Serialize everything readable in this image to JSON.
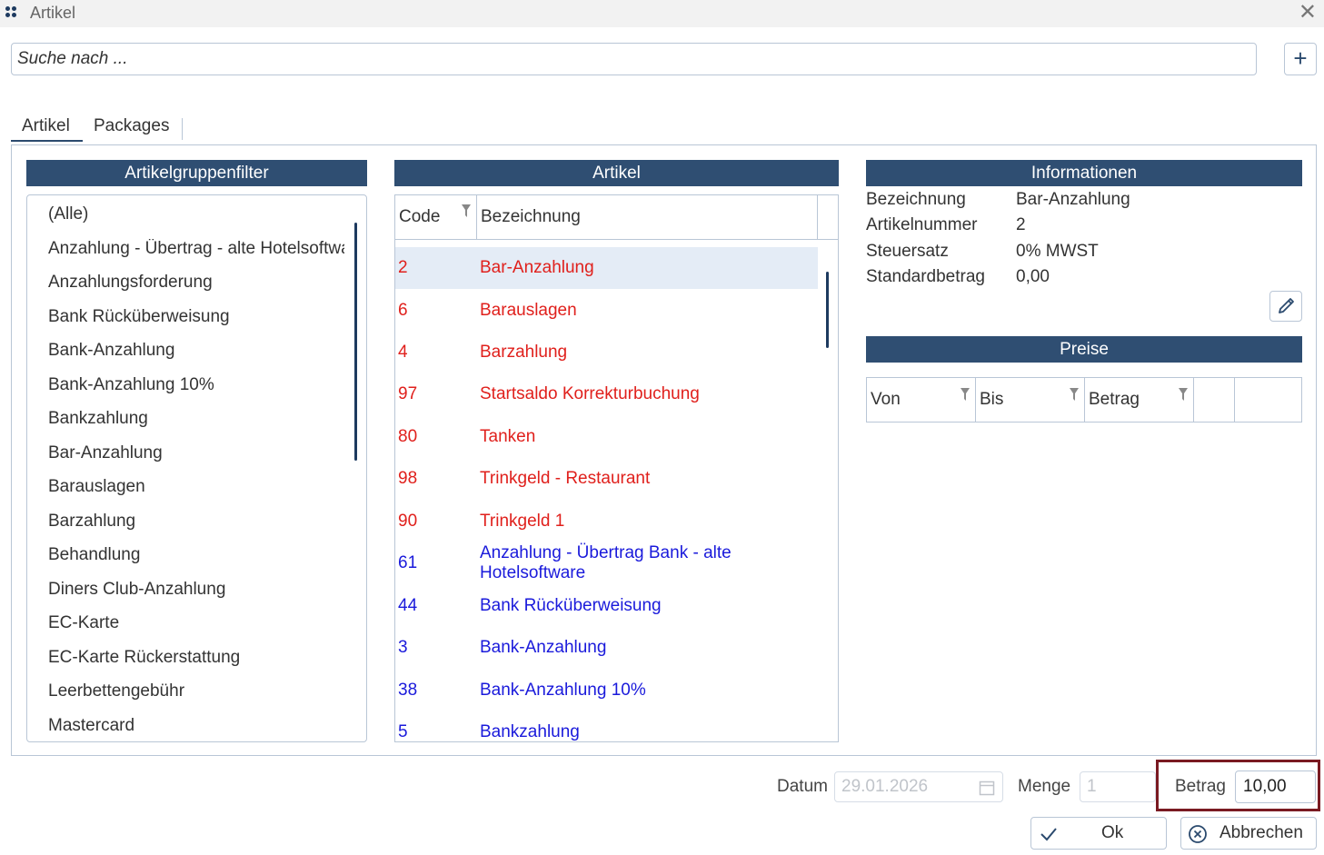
{
  "window": {
    "title": "Artikel"
  },
  "search": {
    "placeholder": "Suche nach ..."
  },
  "tabs": [
    {
      "label": "Artikel"
    },
    {
      "label": "Packages"
    }
  ],
  "group_filter": {
    "header": "Artikelgruppenfilter",
    "items": [
      "(Alle)",
      "Anzahlung - Übertrag - alte Hotelsoftware",
      "Anzahlungsforderung",
      "Bank Rücküberweisung",
      "Bank-Anzahlung",
      "Bank-Anzahlung 10%",
      "Bankzahlung",
      "Bar-Anzahlung",
      "Barauslagen",
      "Barzahlung",
      "Behandlung",
      "Diners Club-Anzahlung",
      "EC-Karte",
      "EC-Karte Rückerstattung",
      "Leerbettengebühr",
      "Mastercard"
    ]
  },
  "articles": {
    "header": "Artikel",
    "columns": {
      "code": "Code",
      "name": "Bezeichnung"
    },
    "rows": [
      {
        "code": "2",
        "name": "Bar-Anzahlung",
        "color": "#e0201c",
        "selected": true
      },
      {
        "code": "6",
        "name": "Barauslagen",
        "color": "#e0201c"
      },
      {
        "code": "4",
        "name": "Barzahlung",
        "color": "#e0201c"
      },
      {
        "code": "97",
        "name": "Startsaldo Korrekturbuchung",
        "color": "#e0201c"
      },
      {
        "code": "80",
        "name": "Tanken",
        "color": "#e0201c"
      },
      {
        "code": "98",
        "name": "Trinkgeld - Restaurant",
        "color": "#e0201c"
      },
      {
        "code": "90",
        "name": "Trinkgeld 1",
        "color": "#e0201c"
      },
      {
        "code": "61",
        "name": "Anzahlung - Übertrag Bank - alte Hotelsoftware",
        "color": "#1a1adb"
      },
      {
        "code": "44",
        "name": "Bank Rücküberweisung",
        "color": "#1a1adb"
      },
      {
        "code": "3",
        "name": "Bank-Anzahlung",
        "color": "#1a1adb"
      },
      {
        "code": "38",
        "name": "Bank-Anzahlung 10%",
        "color": "#1a1adb"
      },
      {
        "code": "5",
        "name": "Bankzahlung",
        "color": "#1a1adb"
      }
    ]
  },
  "info": {
    "header": "Informationen",
    "fields": [
      {
        "label": "Bezeichnung",
        "value": "Bar-Anzahlung"
      },
      {
        "label": "Artikelnummer",
        "value": "2"
      },
      {
        "label": "Steuersatz",
        "value": "0% MWST"
      },
      {
        "label": "Standardbetrag",
        "value": "0,00"
      }
    ]
  },
  "prices": {
    "header": "Preise",
    "columns": {
      "von": "Von",
      "bis": "Bis",
      "betrag": "Betrag"
    }
  },
  "footer": {
    "datum_label": "Datum",
    "datum_value": "29.01.2026",
    "menge_label": "Menge",
    "menge_value": "1",
    "betrag_label": "Betrag",
    "betrag_value": "10,00",
    "ok_label": "Ok",
    "cancel_label": "Abbrechen"
  },
  "colors": {
    "header_bg": "#2f4e72",
    "selected_row": "#e4ecf6",
    "highlight_border": "#7a1a22"
  }
}
